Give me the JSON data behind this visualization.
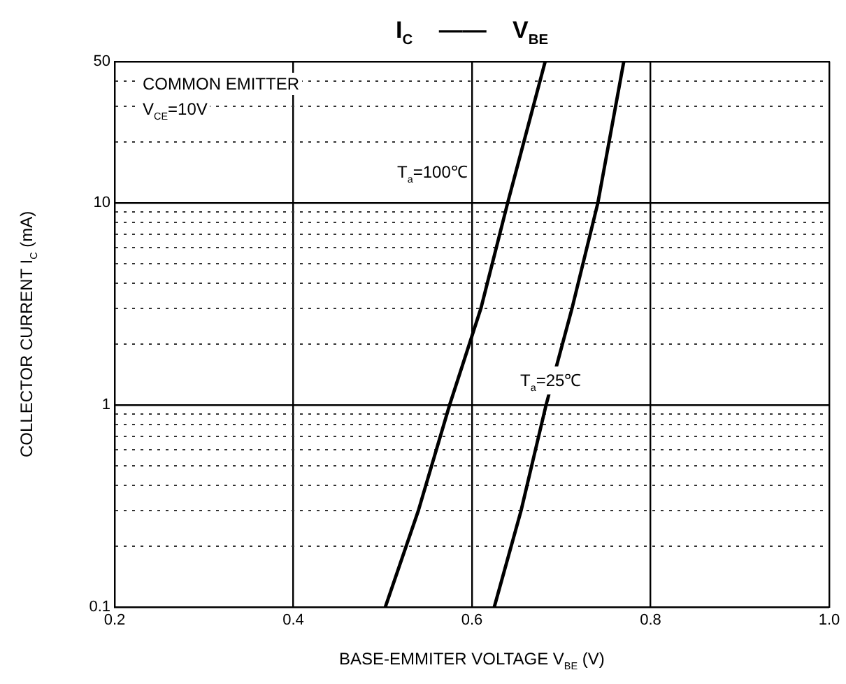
{
  "chart_data": {
    "type": "line",
    "title": "I$_{C}$ —— V$_{BE}$",
    "xlabel": "BASE-EMMITER VOLTAGE   V$_{BE}$   (V)",
    "ylabel": "COLLECTOR CURRENT   I$_{C}$   (mA)",
    "log": "y",
    "xlim": [
      0.2,
      1.0
    ],
    "xticks": [
      0.2,
      0.4,
      0.6,
      0.8,
      {
        "value": 1.0,
        "label": "1.0"
      }
    ],
    "ylim": [
      0.1,
      50
    ],
    "yticks": [
      0.1,
      {
        "value": 0.2,
        "label": null
      },
      {
        "value": 0.3,
        "label": null
      },
      {
        "value": 0.4,
        "label": null
      },
      {
        "value": 0.5,
        "label": null
      },
      {
        "value": 0.6,
        "label": null
      },
      {
        "value": 0.7,
        "label": null
      },
      {
        "value": 0.8,
        "label": null
      },
      {
        "value": 0.9,
        "label": null
      },
      1,
      {
        "value": 2,
        "label": null
      },
      {
        "value": 3,
        "label": null
      },
      {
        "value": 4,
        "label": null
      },
      {
        "value": 5,
        "label": null
      },
      {
        "value": 6,
        "label": null
      },
      {
        "value": 7,
        "label": null
      },
      {
        "value": 8,
        "label": null
      },
      {
        "value": 9,
        "label": null
      },
      10,
      {
        "value": 20,
        "label": null
      },
      {
        "value": 30,
        "label": null
      },
      {
        "value": 40,
        "label": null
      },
      50
    ],
    "grid": true,
    "legend": false,
    "marker": "none",
    "line_style": "solid",
    "series": [
      {
        "color": "#000000",
        "x": [
          0.503,
          0.54,
          0.575,
          0.61,
          0.64,
          0.682
        ],
        "values": [
          0.1,
          0.3,
          1,
          3,
          10,
          50
        ]
      },
      {
        "color": "#000000",
        "x": [
          0.625,
          0.655,
          0.683,
          0.712,
          0.741,
          0.77
        ],
        "values": [
          0.1,
          0.3,
          1,
          3,
          10,
          50
        ]
      }
    ],
    "annotations": [
      "COMMON EMITTER",
      "V$_{CE}$=10V",
      "T$_{a}$=100℃",
      "T$_{a}$=25℃"
    ]
  }
}
